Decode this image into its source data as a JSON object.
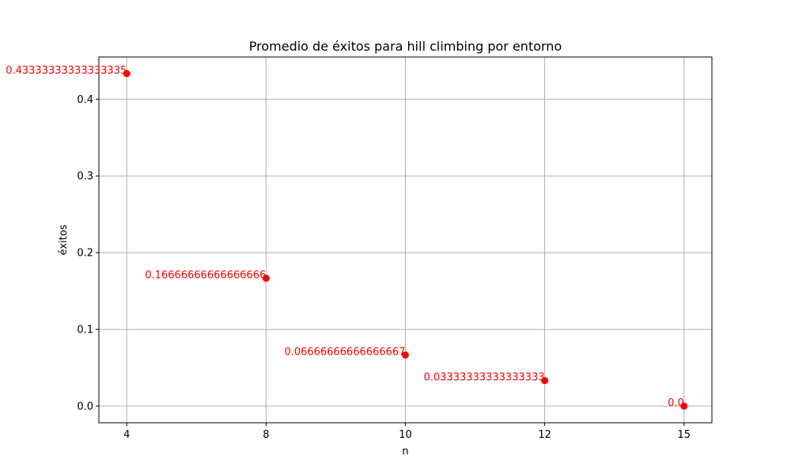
{
  "chart_data": {
    "type": "scatter",
    "title": "Promedio de éxitos para hill climbing por entorno",
    "xlabel": "n",
    "ylabel": "éxitos",
    "categories": [
      "4",
      "8",
      "10",
      "12",
      "15"
    ],
    "values": [
      0.43333333333333335,
      0.16666666666666666,
      0.06666666666666667,
      0.03333333333333333,
      0.0
    ],
    "data_labels": [
      "0.43333333333333335",
      "0.16666666666666666",
      "0.06666666666666667",
      "0.03333333333333333",
      "0.0"
    ],
    "y_ticks": [
      0.0,
      0.1,
      0.2,
      0.3,
      0.4
    ],
    "y_tick_labels": [
      "0.0",
      "0.1",
      "0.2",
      "0.3",
      "0.4"
    ],
    "ylim": [
      -0.021667,
      0.455
    ],
    "grid": true,
    "marker_color": "#ff0000",
    "label_color": "#ff0000",
    "grid_color": "#b0b0b0"
  }
}
